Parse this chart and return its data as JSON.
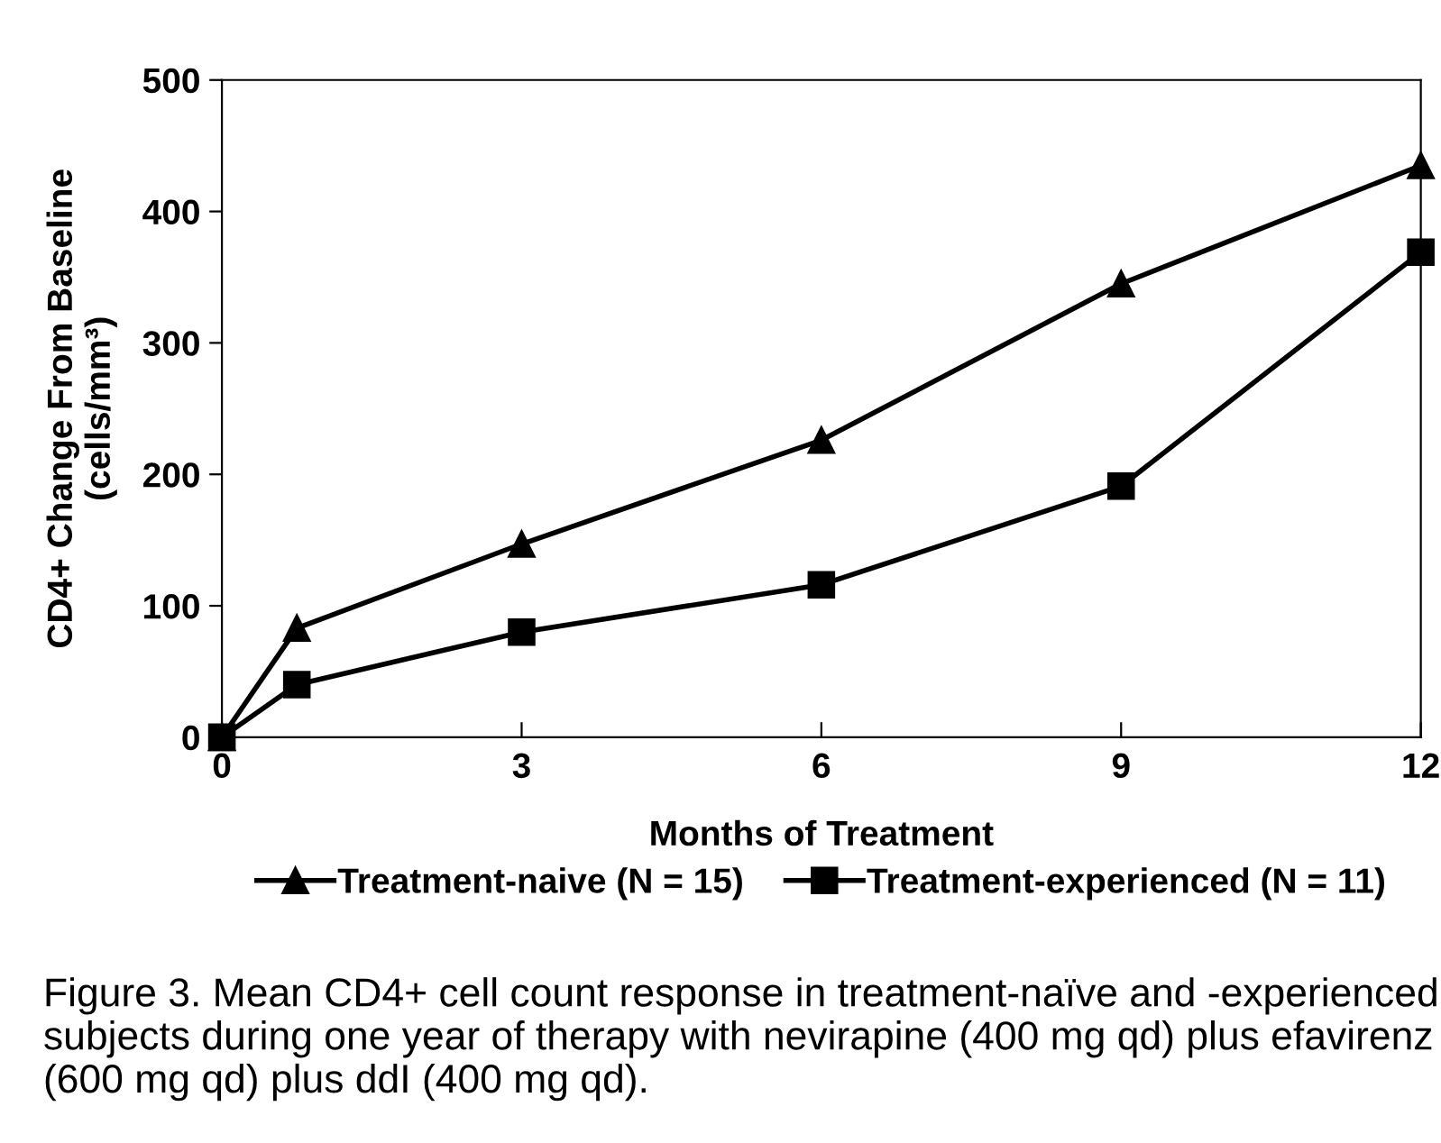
{
  "chart_data": {
    "type": "line",
    "xlabel": "Months of Treatment",
    "ylabel": "CD4+ Change From Baseline\n(cells/mm³)",
    "x": [
      0,
      0.75,
      3,
      6,
      9,
      12
    ],
    "series": [
      {
        "name": "Treatment-naive (N = 15)",
        "color": "#000000",
        "marker": "triangle",
        "values": [
          0,
          83,
          147,
          226,
          345,
          435
        ]
      },
      {
        "name": "Treatment-experienced (N = 11)",
        "color": "#000000",
        "marker": "square",
        "values": [
          0,
          40,
          80,
          116,
          191,
          369
        ]
      }
    ],
    "xlim": [
      0,
      12
    ],
    "xticks": [
      0,
      3,
      6,
      9,
      12
    ],
    "ylim": [
      0,
      500
    ],
    "yticks": [
      0,
      100,
      200,
      300,
      400,
      500
    ],
    "grid": false,
    "legend": "bottom",
    "line_style": "solid",
    "annotations": [
      "Figure 3. Mean CD4+ cell count response in treatment-naïve and -experienced subjects during one year of therapy with nevirapine (400 mg qd) plus efavirenz (600 mg qd) plus ddI (400 mg qd)."
    ]
  }
}
